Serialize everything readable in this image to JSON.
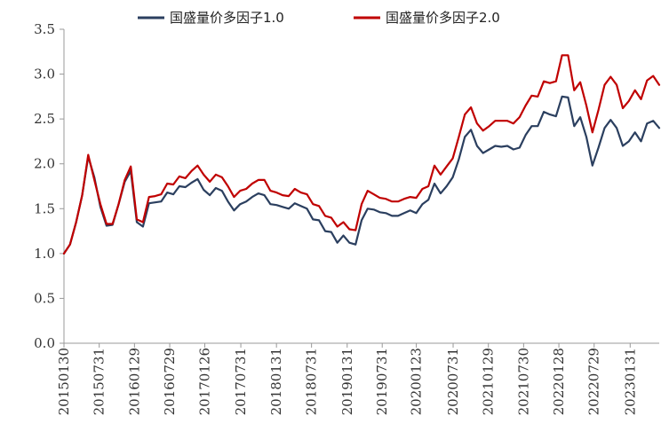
{
  "chart_data": {
    "type": "line",
    "title": "",
    "xlabel": "",
    "ylabel": "",
    "ylim": [
      0,
      3.5
    ],
    "yticks": [
      0.0,
      0.5,
      1.0,
      1.5,
      2.0,
      2.5,
      3.0,
      3.5
    ],
    "ytick_labels": [
      "0.0",
      "0.5",
      "1.0",
      "1.5",
      "2.0",
      "2.5",
      "3.0",
      "3.5"
    ],
    "xlim": [
      "2015-01-30",
      "2023-06-30"
    ],
    "xtick_labels": [
      "20150130",
      "20150731",
      "20160129",
      "20160729",
      "20170126",
      "20170731",
      "20180131",
      "20180731",
      "20190131",
      "20190731",
      "20200123",
      "20200731",
      "20210129",
      "20210730",
      "20220128",
      "20220729",
      "20230131"
    ],
    "xticks": [
      "2015-01-30",
      "2015-07-31",
      "2016-01-29",
      "2016-07-29",
      "2017-01-26",
      "2017-07-31",
      "2018-01-31",
      "2018-07-31",
      "2019-01-31",
      "2019-07-31",
      "2020-01-23",
      "2020-07-31",
      "2021-01-29",
      "2021-07-30",
      "2022-01-28",
      "2022-07-29",
      "2023-01-31"
    ],
    "grid": false,
    "legend_position": "top",
    "series": [
      {
        "name": "国盛量价多因子1.0",
        "color": "#2b3f5f",
        "values": [
          1.0,
          1.1,
          1.35,
          1.65,
          2.08,
          1.85,
          1.52,
          1.31,
          1.32,
          1.55,
          1.8,
          1.92,
          1.35,
          1.3,
          1.56,
          1.57,
          1.58,
          1.68,
          1.66,
          1.75,
          1.74,
          1.79,
          1.83,
          1.71,
          1.65,
          1.73,
          1.7,
          1.58,
          1.48,
          1.55,
          1.58,
          1.63,
          1.67,
          1.65,
          1.55,
          1.54,
          1.52,
          1.5,
          1.56,
          1.53,
          1.5,
          1.38,
          1.37,
          1.25,
          1.24,
          1.12,
          1.2,
          1.12,
          1.1,
          1.37,
          1.5,
          1.49,
          1.46,
          1.45,
          1.42,
          1.42,
          1.45,
          1.48,
          1.45,
          1.55,
          1.6,
          1.78,
          1.67,
          1.75,
          1.85,
          2.05,
          2.3,
          2.38,
          2.2,
          2.12,
          2.16,
          2.2,
          2.19,
          2.2,
          2.16,
          2.18,
          2.32,
          2.42,
          2.42,
          2.58,
          2.55,
          2.53,
          2.75,
          2.74,
          2.42,
          2.52,
          2.3,
          1.98,
          2.18,
          2.4,
          2.49,
          2.4,
          2.2,
          2.25,
          2.35,
          2.25,
          2.45,
          2.48,
          2.4
        ]
      },
      {
        "name": "国盛量价多因子2.0",
        "color": "#c00000",
        "values": [
          1.0,
          1.1,
          1.35,
          1.65,
          2.1,
          1.82,
          1.55,
          1.33,
          1.33,
          1.55,
          1.82,
          1.97,
          1.38,
          1.35,
          1.63,
          1.64,
          1.66,
          1.78,
          1.77,
          1.86,
          1.84,
          1.92,
          1.98,
          1.88,
          1.8,
          1.88,
          1.85,
          1.75,
          1.63,
          1.7,
          1.72,
          1.78,
          1.82,
          1.82,
          1.7,
          1.68,
          1.65,
          1.64,
          1.72,
          1.68,
          1.66,
          1.55,
          1.53,
          1.42,
          1.4,
          1.3,
          1.35,
          1.27,
          1.26,
          1.55,
          1.7,
          1.66,
          1.62,
          1.61,
          1.58,
          1.58,
          1.61,
          1.63,
          1.62,
          1.72,
          1.75,
          1.98,
          1.88,
          1.97,
          2.06,
          2.3,
          2.55,
          2.63,
          2.45,
          2.37,
          2.42,
          2.48,
          2.48,
          2.48,
          2.45,
          2.52,
          2.65,
          2.76,
          2.75,
          2.92,
          2.9,
          2.92,
          3.21,
          3.21,
          2.82,
          2.91,
          2.65,
          2.35,
          2.6,
          2.88,
          2.97,
          2.88,
          2.62,
          2.7,
          2.82,
          2.72,
          2.93,
          2.98,
          2.88
        ]
      }
    ]
  }
}
